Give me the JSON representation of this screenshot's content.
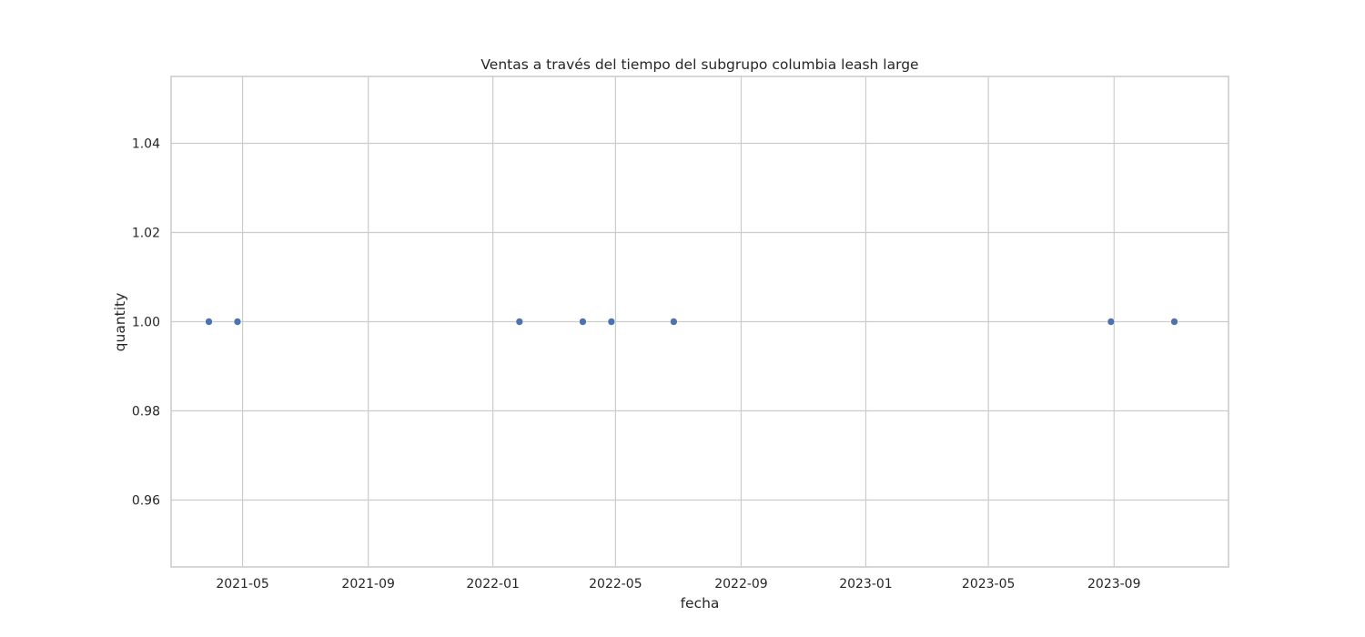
{
  "chart_data": {
    "type": "scatter",
    "title": "Ventas a través del tiempo del subgrupo columbia leash large",
    "xlabel": "fecha",
    "ylabel": "quantity",
    "x_ticks": [
      "2021-05",
      "2021-09",
      "2022-01",
      "2022-05",
      "2022-09",
      "2023-01",
      "2023-05",
      "2023-09"
    ],
    "y_ticks": [
      "0.96",
      "0.98",
      "1.00",
      "1.02",
      "1.04"
    ],
    "xlim": [
      "2021-02-20",
      "2023-12-22"
    ],
    "ylim": [
      0.945,
      1.055
    ],
    "grid": true,
    "legend": "none",
    "marker_color": "#4c72b0",
    "points": [
      {
        "x": "2021-03-29",
        "y": 1.0
      },
      {
        "x": "2021-04-26",
        "y": 1.0
      },
      {
        "x": "2022-01-27",
        "y": 1.0
      },
      {
        "x": "2022-03-30",
        "y": 1.0
      },
      {
        "x": "2022-04-27",
        "y": 1.0
      },
      {
        "x": "2022-06-27",
        "y": 1.0
      },
      {
        "x": "2023-08-29",
        "y": 1.0
      },
      {
        "x": "2023-10-30",
        "y": 1.0
      }
    ]
  }
}
